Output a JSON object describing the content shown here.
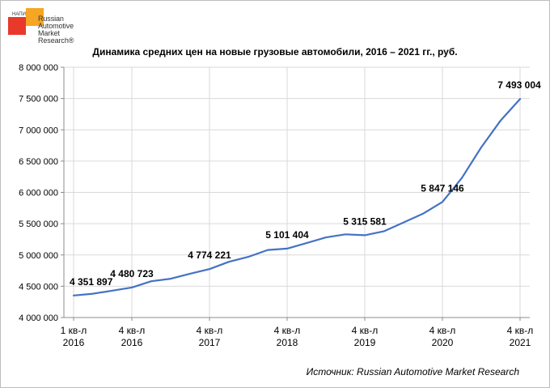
{
  "logo": {
    "small_text": "НАПИ",
    "text": "Russian\nAutomotive\nMarket\nResearch®"
  },
  "chart_data": {
    "type": "line",
    "title": "Динамика средних цен на новые грузовые автомобили, 2016 – 2021 гг., руб.",
    "xlabel": "",
    "ylabel": "",
    "ylim": [
      4000000,
      8000000
    ],
    "yticks": [
      4000000,
      4500000,
      5000000,
      5500000,
      6000000,
      6500000,
      7000000,
      7500000,
      8000000
    ],
    "ytick_labels": [
      "4 000 000",
      "4 500 000",
      "5 000 000",
      "5 500 000",
      "6 000 000",
      "6 500 000",
      "7 000 000",
      "7 500 000",
      "8 000 000"
    ],
    "x_tick_labels": [
      {
        "index": 0,
        "line1": "1 кв-л",
        "line2": "2016"
      },
      {
        "index": 3,
        "line1": "4 кв-л",
        "line2": "2016"
      },
      {
        "index": 7,
        "line1": "4 кв-л",
        "line2": "2017"
      },
      {
        "index": 11,
        "line1": "4 кв-л",
        "line2": "2018"
      },
      {
        "index": 15,
        "line1": "4 кв-л",
        "line2": "2019"
      },
      {
        "index": 19,
        "line1": "4 кв-л",
        "line2": "2020"
      },
      {
        "index": 23,
        "line1": "4 кв-л",
        "line2": "2021"
      }
    ],
    "grid": "vertical at x tick labels, horizontal at y ticks",
    "series": [
      {
        "color": "#4472c4",
        "values": [
          4351897,
          4380000,
          4430000,
          4480723,
          4580000,
          4620000,
          4700000,
          4774221,
          4890000,
          4970000,
          5080000,
          5101404,
          5190000,
          5280000,
          5330000,
          5315581,
          5380000,
          5520000,
          5660000,
          5847146,
          6230000,
          6720000,
          7150000,
          7493004
        ]
      }
    ],
    "data_labels": [
      {
        "index": 0,
        "text": "4 351 897"
      },
      {
        "index": 3,
        "text": "4 480 723"
      },
      {
        "index": 7,
        "text": "4 774 221"
      },
      {
        "index": 11,
        "text": "5 101 404"
      },
      {
        "index": 15,
        "text": "5 315 581"
      },
      {
        "index": 19,
        "text": "5 847 146"
      },
      {
        "index": 23,
        "text": "7 493 004"
      }
    ]
  },
  "source": "Источник: Russian Automotive Market Research"
}
